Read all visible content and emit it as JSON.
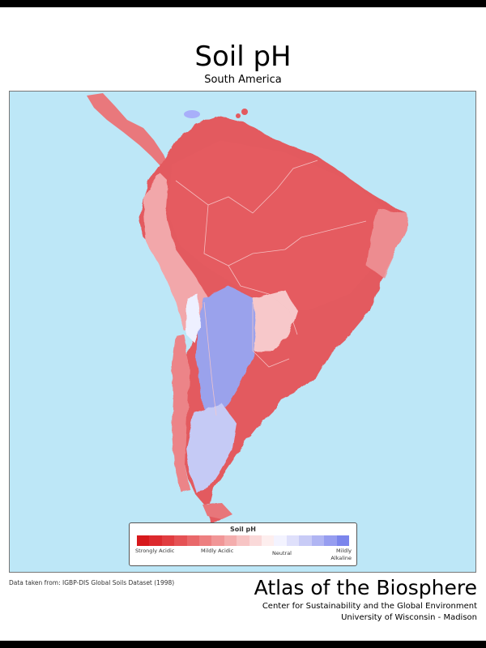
{
  "header": {
    "title": "Soil pH",
    "subtitle": "South America"
  },
  "legend": {
    "title": "Soil pH",
    "colors": [
      "#d7191c",
      "#dc2a2e",
      "#e13d40",
      "#e55255",
      "#e9686a",
      "#ed7f80",
      "#f19697",
      "#f4adad",
      "#f7c4c4",
      "#fad9d9",
      "#fdeeee",
      "#f3f3ff",
      "#dfe0fb",
      "#c8cbf6",
      "#b0b5f3",
      "#969df0",
      "#7b85ec"
    ],
    "labels": {
      "strongly_acidic": "Strongly Acidic",
      "mildly_acidic": "Mildly Acidic",
      "neutral": "Neutral",
      "mildly_alkaline": "Mildly Alkaline"
    }
  },
  "map": {
    "ocean_color": "#bde7f7",
    "acidic_color": "#e35a5f",
    "light_acidic_color": "#f2a7aa",
    "alkaline_color": "#8d97ea",
    "neutral_color": "#fbe6e6"
  },
  "footer": {
    "source": "Data taken from: IGBP-DIS Global Soils Dataset (1998)",
    "brand_title": "Atlas of the Biosphere",
    "brand_line1": "Center for Sustainability and the Global Environment",
    "brand_line2": "University of Wisconsin - Madison"
  }
}
